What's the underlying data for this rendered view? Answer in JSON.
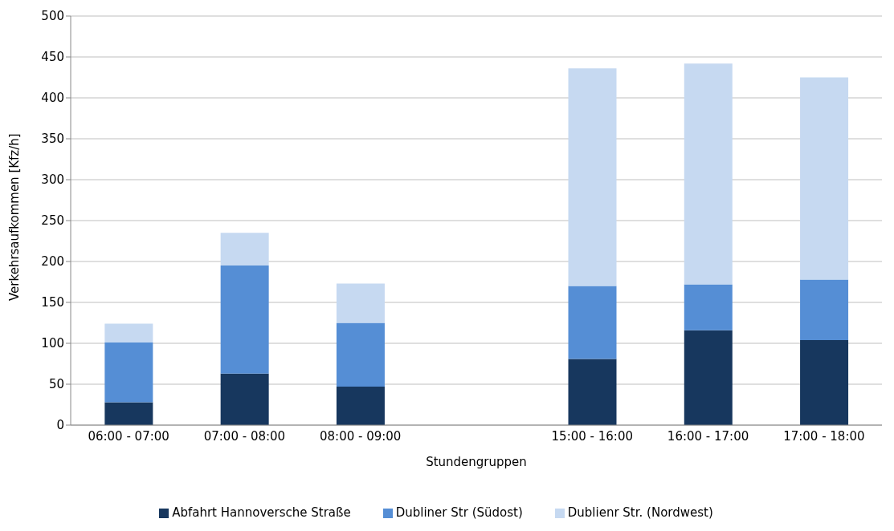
{
  "chart_data": {
    "type": "bar",
    "stacked": true,
    "xlabel": "Stundengruppen",
    "ylabel": "Verkehrsaufkommen [Kfz/h]",
    "categories": [
      "06:00 - 07:00",
      "07:00 - 08:00",
      "08:00 - 09:00",
      null,
      "15:00 - 16:00",
      "16:00 - 17:00",
      "17:00 - 18:00"
    ],
    "series": [
      {
        "name": "Abfahrt Hannoversche Straße",
        "color": "#17375e",
        "values": [
          28,
          63,
          47,
          null,
          81,
          116,
          104
        ]
      },
      {
        "name": "Dubliner Str (Südost)",
        "color": "#558ed5",
        "values": [
          73,
          132,
          78,
          null,
          89,
          56,
          74
        ]
      },
      {
        "name": "Dublienr Str. (Nordwest)",
        "color": "#c6d9f1",
        "values": [
          23,
          40,
          48,
          null,
          266,
          270,
          247
        ]
      }
    ],
    "ylim": [
      0,
      500
    ],
    "yticks": [
      0,
      50,
      100,
      150,
      200,
      250,
      300,
      350,
      400,
      450,
      500
    ],
    "grid": "y",
    "legend": "bottom"
  }
}
